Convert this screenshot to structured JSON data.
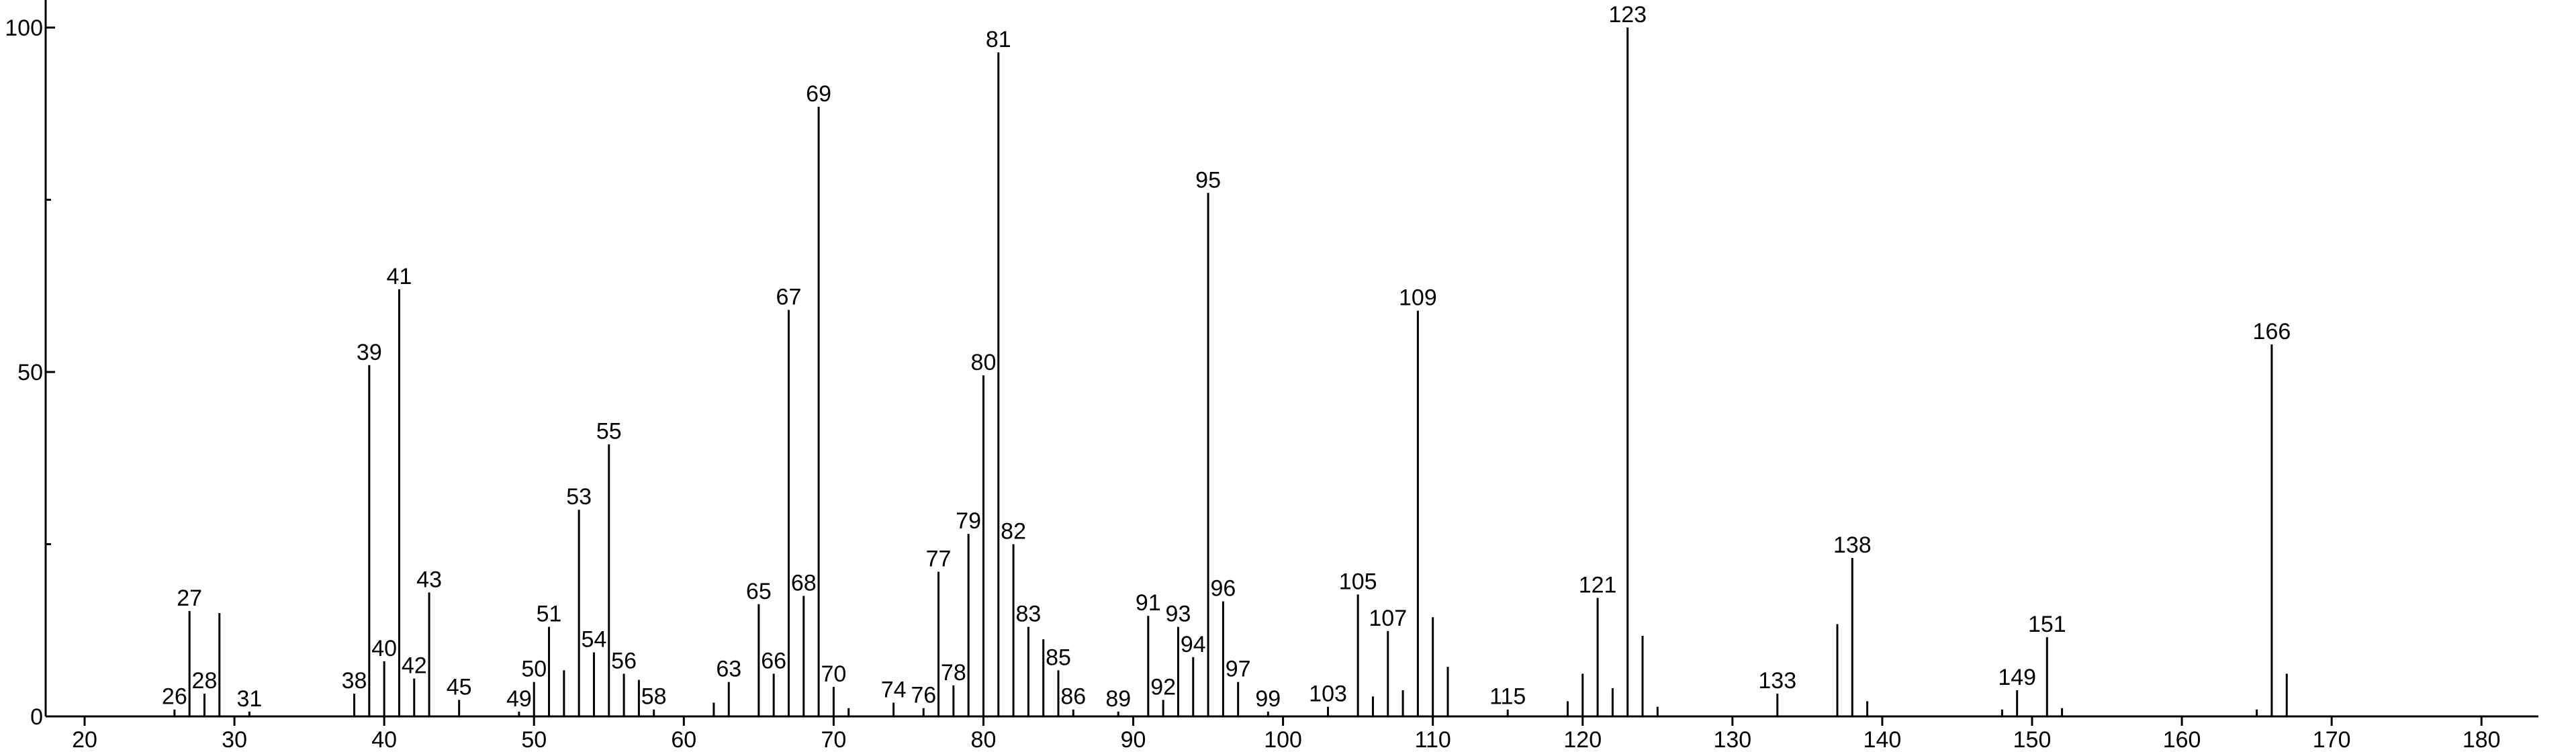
{
  "chart_data": {
    "type": "stem",
    "color": "#000000",
    "xlim": [
      17.4,
      183.8
    ],
    "ylim": [
      0,
      104
    ],
    "xticks": [
      20,
      30,
      40,
      50,
      60,
      70,
      80,
      90,
      100,
      110,
      120,
      130,
      140,
      150,
      160,
      170,
      180
    ],
    "yticks": [
      0,
      50,
      100
    ],
    "yminor": [
      25,
      75
    ],
    "series": [
      {
        "labeled": true,
        "x": [
          26,
          27,
          28,
          31,
          38,
          39,
          40,
          41,
          42,
          43,
          45,
          49,
          50,
          51,
          53,
          54,
          55,
          56,
          58,
          63,
          65,
          66,
          67,
          68,
          69,
          70,
          74,
          76,
          77,
          78,
          79,
          80,
          81,
          82,
          83,
          85,
          86,
          89,
          91,
          92,
          93,
          94,
          95,
          96,
          97,
          99,
          103,
          105,
          107,
          109,
          115,
          121,
          123,
          133,
          138,
          149,
          151,
          166
        ],
        "values": [
          1,
          15.3,
          3.3,
          0.7,
          3.3,
          51,
          8,
          62,
          5.5,
          18,
          2.4,
          0.7,
          5,
          13,
          30,
          9.3,
          39.5,
          6.2,
          1,
          5,
          16.3,
          6.2,
          59,
          17.5,
          88.5,
          4.3,
          2,
          1.2,
          21,
          4.5,
          26.5,
          49.5,
          96.4,
          25,
          13,
          6.7,
          1,
          0.7,
          14.6,
          2.4,
          13,
          8.6,
          76,
          16.7,
          5,
          0.7,
          1.4,
          17.7,
          12.4,
          58.9,
          1,
          17.2,
          100,
          3.3,
          23,
          3.8,
          11.5,
          54
        ]
      },
      {
        "labeled": false,
        "x": [
          29,
          52,
          57,
          62,
          71,
          84,
          106,
          108,
          110,
          111,
          119,
          120,
          122,
          124,
          125,
          137,
          139,
          148,
          152,
          165,
          167
        ],
        "values": [
          15,
          6.7,
          5.3,
          2,
          1.2,
          11.2,
          2.9,
          3.8,
          14.4,
          7.2,
          2.2,
          6.2,
          4.1,
          11.7,
          1.4,
          13.4,
          2.2,
          1,
          1.2,
          1,
          6.2
        ]
      }
    ]
  }
}
